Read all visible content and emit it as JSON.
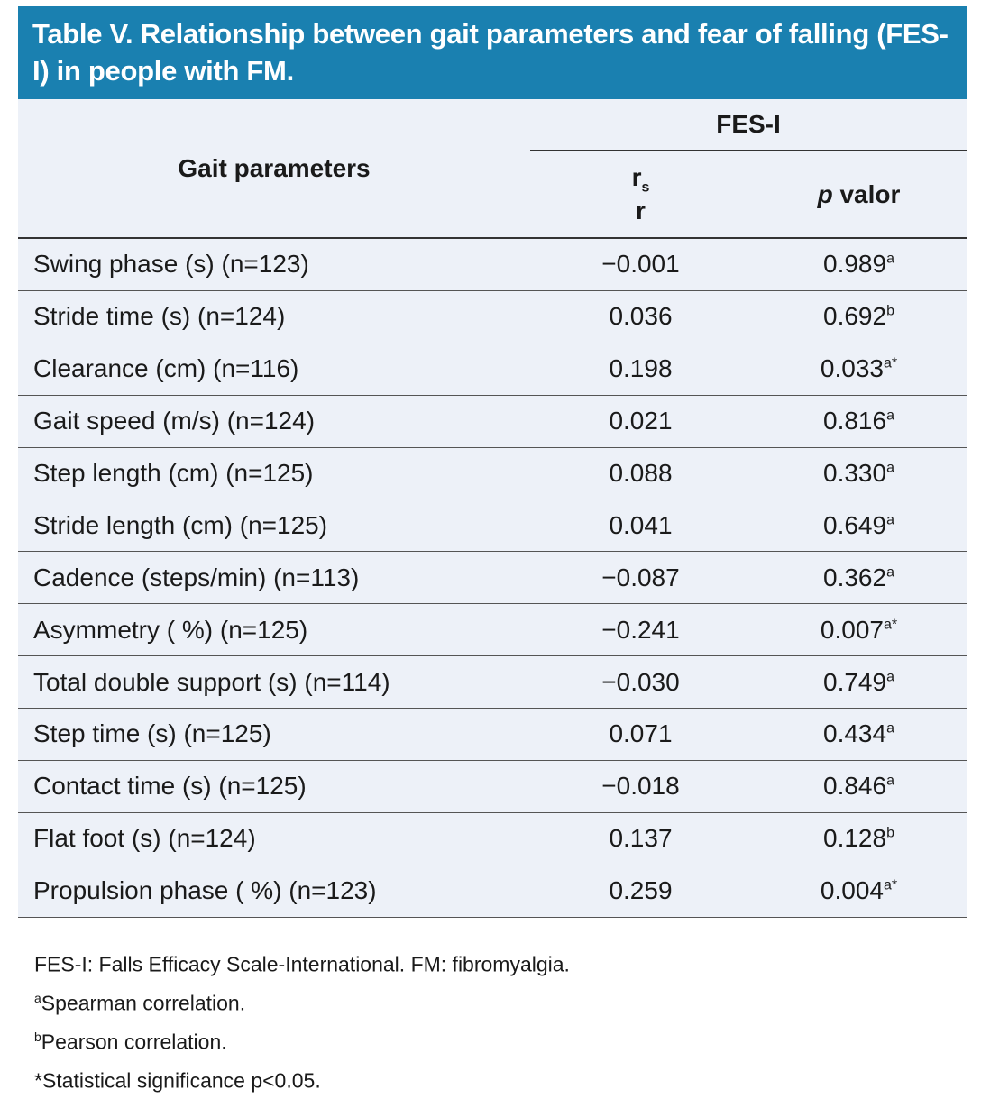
{
  "title": "Table V. Relationship between gait parameters and fear of falling (FES-I) in people with FM.",
  "header": {
    "col1": "Gait parameters",
    "group": "FES-I",
    "col2_main": "r",
    "col2_sub": "s",
    "col2_line2": "r",
    "col3_italic": "p",
    "col3_rest": " valor"
  },
  "rows": [
    {
      "param": "Swing phase (s) (n=123)",
      "r": "−0.001",
      "p": "0.989",
      "sup": "a"
    },
    {
      "param": "Stride time (s) (n=124)",
      "r": "0.036",
      "p": "0.692",
      "sup": "b"
    },
    {
      "param": "Clearance (cm) (n=116)",
      "r": "0.198",
      "p": "0.033",
      "sup": "a*"
    },
    {
      "param": "Gait speed (m/s) (n=124)",
      "r": "0.021",
      "p": "0.816",
      "sup": "a"
    },
    {
      "param": "Step length (cm) (n=125)",
      "r": "0.088",
      "p": "0.330",
      "sup": "a"
    },
    {
      "param": "Stride length (cm) (n=125)",
      "r": "0.041",
      "p": "0.649",
      "sup": "a"
    },
    {
      "param": "Cadence (steps/min) (n=113)",
      "r": "−0.087",
      "p": "0.362",
      "sup": "a"
    },
    {
      "param": "Asymmetry ( %) (n=125)",
      "r": "−0.241",
      "p": "0.007",
      "sup": "a*"
    },
    {
      "param": "Total double support (s) (n=114)",
      "r": "−0.030",
      "p": "0.749",
      "sup": "a"
    },
    {
      "param": "Step time (s) (n=125)",
      "r": "0.071",
      "p": "0.434",
      "sup": "a"
    },
    {
      "param": "Contact time (s) (n=125)",
      "r": "−0.018",
      "p": "0.846",
      "sup": "a"
    },
    {
      "param": "Flat foot (s) (n=124)",
      "r": "0.137",
      "p": "0.128",
      "sup": "b"
    },
    {
      "param": "Propulsion phase ( %) (n=123)",
      "r": "0.259",
      "p": "0.004",
      "sup": "a*"
    }
  ],
  "notes": [
    {
      "sup": "",
      "text": "FES-I: Falls Efficacy Scale-International. FM: fibromyalgia."
    },
    {
      "sup": "a",
      "text": "Spearman correlation."
    },
    {
      "sup": "b",
      "text": "Pearson correlation."
    },
    {
      "sup": "",
      "text": "*Statistical significance p<0.05."
    }
  ],
  "colors": {
    "title_bg": "#1a80b0",
    "table_bg": "#edf1f8"
  }
}
